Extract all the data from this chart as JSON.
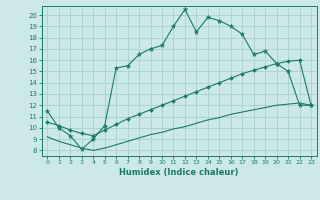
{
  "title": "",
  "xlabel": "Humidex (Indice chaleur)",
  "bg_color": "#cce8e8",
  "line_color": "#1a7a6a",
  "grid_color": "#aacfcf",
  "xlim": [
    -0.5,
    23.5
  ],
  "ylim": [
    7.5,
    20.8
  ],
  "yticks": [
    8,
    9,
    10,
    11,
    12,
    13,
    14,
    15,
    16,
    17,
    18,
    19,
    20
  ],
  "xticks": [
    0,
    1,
    2,
    3,
    4,
    5,
    6,
    7,
    8,
    9,
    10,
    11,
    12,
    13,
    14,
    15,
    16,
    17,
    18,
    19,
    20,
    21,
    22,
    23
  ],
  "line1_x": [
    0,
    1,
    2,
    3,
    4,
    5,
    6,
    7,
    8,
    9,
    10,
    11,
    12,
    13,
    14,
    15,
    16,
    17,
    18,
    19,
    20,
    21,
    22,
    23
  ],
  "line1_y": [
    11.5,
    10.0,
    9.3,
    8.1,
    9.0,
    10.2,
    15.3,
    15.5,
    16.5,
    17.0,
    17.3,
    19.0,
    20.5,
    18.5,
    19.8,
    19.5,
    19.0,
    18.3,
    16.5,
    16.8,
    15.7,
    15.0,
    12.0,
    12.0
  ],
  "line2_x": [
    0,
    1,
    2,
    3,
    4,
    5,
    6,
    7,
    8,
    9,
    10,
    11,
    12,
    13,
    14,
    15,
    16,
    17,
    18,
    19,
    20,
    21,
    22,
    23
  ],
  "line2_y": [
    10.5,
    10.2,
    9.8,
    9.5,
    9.3,
    9.8,
    10.3,
    10.8,
    11.2,
    11.6,
    12.0,
    12.4,
    12.8,
    13.2,
    13.6,
    14.0,
    14.4,
    14.8,
    15.1,
    15.4,
    15.7,
    15.9,
    16.0,
    12.0
  ],
  "line3_x": [
    0,
    1,
    2,
    3,
    4,
    5,
    6,
    7,
    8,
    9,
    10,
    11,
    12,
    13,
    14,
    15,
    16,
    17,
    18,
    19,
    20,
    21,
    22,
    23
  ],
  "line3_y": [
    9.2,
    8.8,
    8.5,
    8.2,
    8.0,
    8.2,
    8.5,
    8.8,
    9.1,
    9.4,
    9.6,
    9.9,
    10.1,
    10.4,
    10.7,
    10.9,
    11.2,
    11.4,
    11.6,
    11.8,
    12.0,
    12.1,
    12.2,
    12.0
  ]
}
